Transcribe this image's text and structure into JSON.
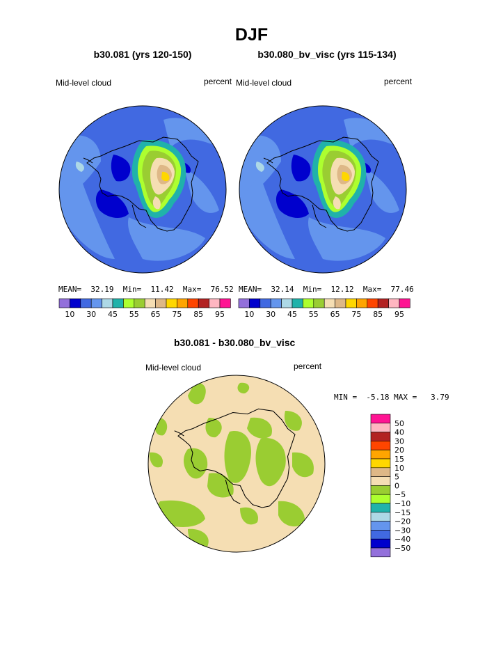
{
  "main_title": "DJF",
  "panels": [
    {
      "title": "b30.081 (yrs 120-150)",
      "var_label": "Mid-level cloud",
      "units_label": "percent",
      "stats": {
        "mean_label": "MEAN=",
        "mean": "32.19",
        "min_label": "Min=",
        "min": "11.42",
        "max_label": "Max=",
        "max": "76.52"
      }
    },
    {
      "title": "b30.080_bv_visc (yrs 115-134)",
      "var_label": "Mid-level cloud",
      "units_label": "percent",
      "stats": {
        "mean_label": "MEAN=",
        "mean": "32.14",
        "min_label": "Min=",
        "min": "12.12",
        "max_label": "Max=",
        "max": "77.46"
      }
    }
  ],
  "diff_panel": {
    "title": "b30.081 - b30.080_bv_visc",
    "var_label": "Mid-level cloud",
    "units_label": "percent",
    "min_label": "MIN =",
    "min": "-5.18",
    "max_label": "MAX =",
    "max": "3.79"
  },
  "colorbar_main": {
    "colors": [
      "#9370db",
      "#0000cd",
      "#4169e1",
      "#6495ed",
      "#add8e6",
      "#20b2aa",
      "#adff2f",
      "#9acd32",
      "#f5deb3",
      "#deb887",
      "#ffd700",
      "#ffa500",
      "#ff4500",
      "#b22222",
      "#ffb6c1",
      "#ff1493"
    ],
    "labels": [
      "10",
      "30",
      "45",
      "55",
      "65",
      "75",
      "85",
      "95"
    ]
  },
  "colorbar_diff": {
    "colors": [
      "#ff1493",
      "#ffb6c1",
      "#b22222",
      "#ff4500",
      "#ffa500",
      "#ffd700",
      "#deb887",
      "#f5deb3",
      "#9acd32",
      "#adff2f",
      "#20b2aa",
      "#add8e6",
      "#6495ed",
      "#4169e1",
      "#0000cd",
      "#9370db"
    ],
    "labels": [
      "50",
      "40",
      "30",
      "20",
      "15",
      "10",
      "5",
      "0",
      "−5",
      "−10",
      "−15",
      "−20",
      "−30",
      "−40",
      "−50"
    ]
  },
  "field_colors": {
    "ocean_base": "#4169e1",
    "ocean_light": "#6495ed",
    "low_cloud": "#0000cd",
    "diff_background": "#f5deb3",
    "diff_negative": "#9acd32"
  }
}
